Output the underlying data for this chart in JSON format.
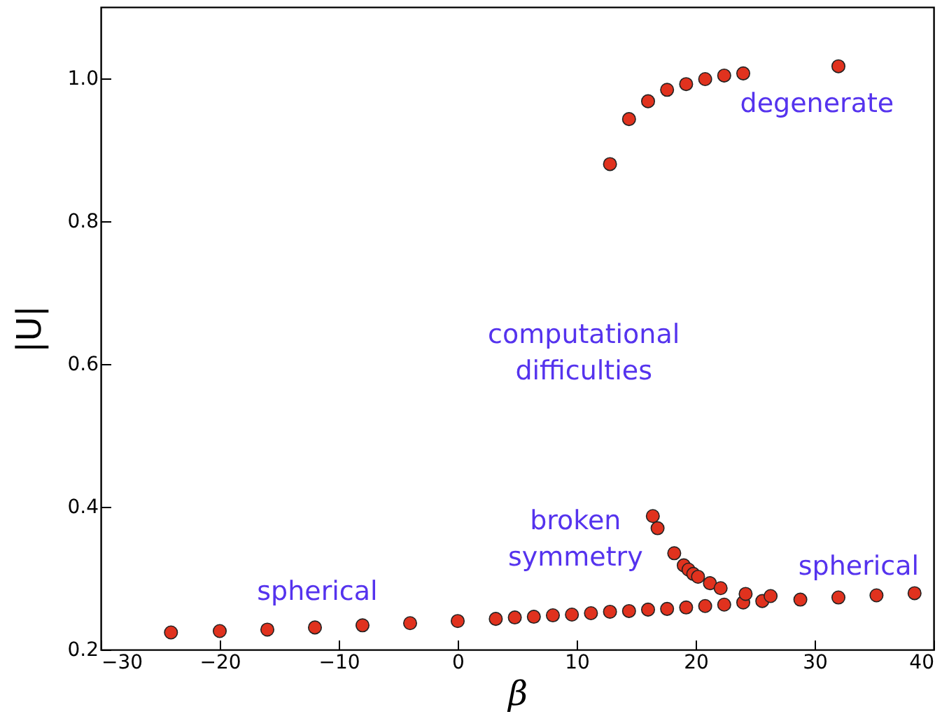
{
  "chart_data": {
    "type": "scatter",
    "xlabel": "β",
    "ylabel": "|U|",
    "xlim": [
      -30,
      40
    ],
    "ylim": [
      0.2,
      1.1
    ],
    "xticks": [
      -30,
      -20,
      -10,
      0,
      10,
      20,
      30,
      40
    ],
    "yticks": [
      0.2,
      0.4,
      0.6,
      0.8,
      {
        "value": 1,
        "label": "1.0"
      }
    ],
    "grid": false,
    "marker": "circle",
    "series": [
      {
        "color": "#e0321e",
        "x": [
          -24.1,
          -20,
          -16,
          -12,
          -8,
          -4,
          0,
          3.2,
          4.8,
          6.4,
          8,
          9.6,
          11.2,
          12.8,
          14.4,
          16,
          17.6,
          19.2,
          20.8,
          22.4,
          24,
          25.6,
          28.8,
          32,
          35.2,
          38.4,
          24.2,
          26.3,
          16.4,
          16.8,
          18.2,
          19,
          19.4,
          19.8,
          20.2,
          21.2,
          22.1,
          12.8,
          14.4,
          16,
          17.6,
          19.2,
          20.8,
          22.4,
          24,
          32
        ],
        "values": [
          0.224,
          0.226,
          0.228,
          0.231,
          0.234,
          0.237,
          0.24,
          0.243,
          0.245,
          0.246,
          0.248,
          0.249,
          0.251,
          0.253,
          0.254,
          0.256,
          0.257,
          0.259,
          0.261,
          0.263,
          0.266,
          0.268,
          0.27,
          0.273,
          0.276,
          0.279,
          0.278,
          0.275,
          0.387,
          0.37,
          0.335,
          0.318,
          0.312,
          0.306,
          0.302,
          0.293,
          0.286,
          0.88,
          0.943,
          0.968,
          0.984,
          0.992,
          0.999,
          1.004,
          1.007,
          1.017
        ]
      }
    ],
    "annotations": [
      "degenerate",
      "computational\ndifficulties",
      "broken\nsymmetry",
      "spherical",
      "spherical"
    ]
  }
}
